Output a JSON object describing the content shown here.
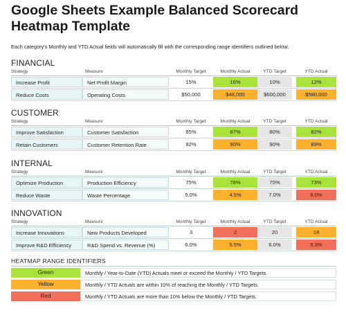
{
  "title": "Google Sheets Example Balanced Scorecard Heatmap Template",
  "intro": "Each category's Monthly and YTD Actual fields will automatically fill with the corresponding range identifiers outlined below.",
  "headers": {
    "strategy": "Strategy",
    "measure": "Measure",
    "monthly_target": "Monthly Target",
    "monthly_actual": "Monthly Actual",
    "ytd_target": "YTD Target",
    "ytd_actual": "YTD Actual"
  },
  "sections": [
    {
      "name": "FINANCIAL",
      "rows": [
        {
          "strategy": "Increase Profit",
          "measure": "Net Profit Margin",
          "mt": "15%",
          "ma": "16%",
          "ma_status": "green",
          "yt": "10%",
          "ya": "12%",
          "ya_status": "green"
        },
        {
          "strategy": "Reduce Costs",
          "measure": "Operating Costs",
          "mt": "$50,000",
          "ma": "$48,000",
          "ma_status": "yellow",
          "yt": "$600,000",
          "ya": "$580,000",
          "ya_status": "yellow"
        }
      ]
    },
    {
      "name": "CUSTOMER",
      "rows": [
        {
          "strategy": "Improve Satisfaction",
          "measure": "Customer Satisfaction",
          "mt": "85%",
          "ma": "87%",
          "ma_status": "green",
          "yt": "80%",
          "ya": "82%",
          "ya_status": "green"
        },
        {
          "strategy": "Retain Customers",
          "measure": "Customer Retention Rate",
          "mt": "92%",
          "ma": "90%",
          "ma_status": "yellow",
          "yt": "90%",
          "ya": "89%",
          "ya_status": "yellow"
        }
      ]
    },
    {
      "name": "INTERNAL",
      "rows": [
        {
          "strategy": "Optimize Production",
          "measure": "Production Efficiency",
          "mt": "75%",
          "ma": "78%",
          "ma_status": "green",
          "yt": "70%",
          "ya": "73%",
          "ya_status": "green"
        },
        {
          "strategy": "Reduce Waste",
          "measure": "Waste Percentage",
          "mt": "5.0%",
          "ma": "4.5%",
          "ma_status": "yellow",
          "yt": "7.0%",
          "ya": "6.0%",
          "ya_status": "red"
        }
      ]
    },
    {
      "name": "INNOVATION",
      "rows": [
        {
          "strategy": "Increase Innovations",
          "measure": "New Products Developed",
          "mt": "3",
          "ma": "2",
          "ma_status": "red",
          "yt": "20",
          "ya": "18",
          "ya_status": "yellow"
        },
        {
          "strategy": "Improve R&D Efficiency",
          "measure": "R&D Spend vs. Revenue (%)",
          "mt": "6.0%",
          "ma": "5.5%",
          "ma_status": "yellow",
          "yt": "6.0%",
          "ya": "5.3%",
          "ya_status": "red"
        }
      ]
    }
  ],
  "legend": {
    "title": "HEATMAP RANGE IDENTIFIERS",
    "items": [
      {
        "label": "Green",
        "status": "green",
        "text": "Monthly / Year-to-Date (YTD) Actuals meet or exceed the Monthly / YTD Targets."
      },
      {
        "label": "Yellow",
        "status": "yellow",
        "text": "Monthly / YTD Actuals are within 10% of reaching the Monthly / YTD Targets."
      },
      {
        "label": "Red",
        "status": "red",
        "text": "Monthly / YTD Actuals are more than 10% below the Monthly / YTD Targets."
      }
    ]
  },
  "colors": {
    "green": "#a8e23a",
    "yellow": "#fdb12e",
    "red": "#f1705b"
  }
}
